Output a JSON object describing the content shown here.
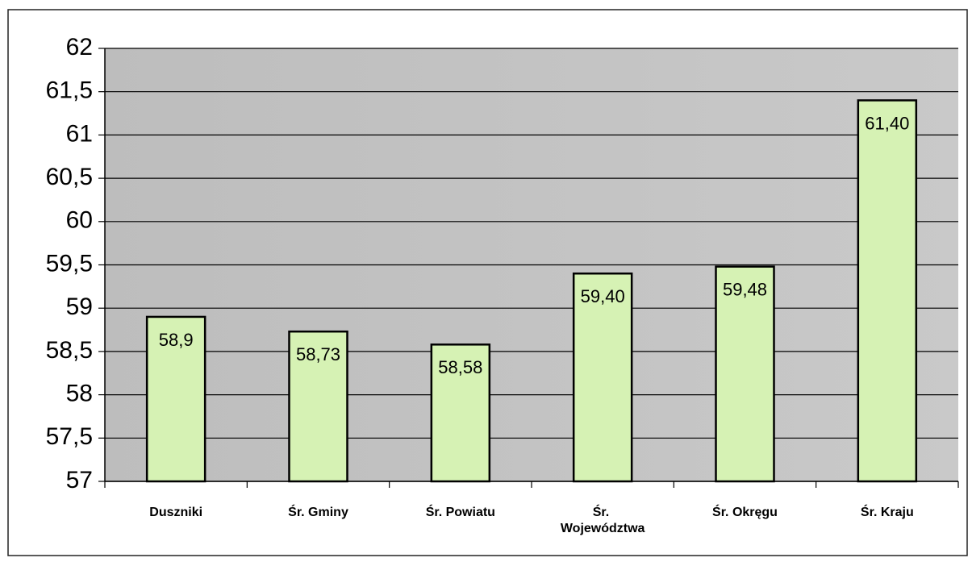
{
  "chart_data": {
    "type": "bar",
    "categories": [
      "Duszniki",
      "Śr. Gminy",
      "Śr. Powiatu",
      "Śr. Województwa",
      "Śr. Okręgu",
      "Śr. Kraju"
    ],
    "values": [
      58.9,
      58.73,
      58.58,
      59.4,
      59.48,
      61.4
    ],
    "value_labels": [
      "58,9",
      "58,73",
      "58,58",
      "59,40",
      "59,48",
      "61,40"
    ],
    "color": "#d6f2b4",
    "ylim": [
      57,
      62
    ],
    "yticks": [
      57,
      {
        "value": 57.5,
        "label": "57,5"
      },
      58,
      {
        "value": 58.5,
        "label": "58,5"
      },
      59,
      {
        "value": 59.5,
        "label": "59,5"
      },
      60,
      {
        "value": 60.5,
        "label": "60,5"
      },
      61,
      {
        "value": 61.5,
        "label": "61,5"
      },
      62
    ],
    "grid": true
  }
}
